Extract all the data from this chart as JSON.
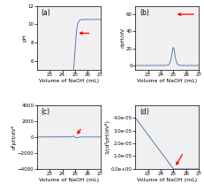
{
  "xlim": [
    22,
    27
  ],
  "xticks": [
    23,
    24,
    25,
    26,
    27
  ],
  "xlabel": "Volume of NaOH (mL)",
  "eq_point": 25.0,
  "panel_labels": [
    "(a)",
    "(b)",
    "(c)",
    "(d)"
  ],
  "line_color": "#5b7cb5",
  "arrow_color": "red",
  "background": "#f0f0f0",
  "tick_fontsize": 4,
  "label_fontsize": 4.5,
  "panel_label_fontsize": 5.5,
  "ph_ylim": [
    5.0,
    12.0
  ],
  "ph_yticks": [
    6,
    8,
    10,
    12
  ],
  "dpH_ylim": [
    -5,
    70
  ],
  "dpH_yticks": [
    0,
    20,
    40,
    60
  ],
  "d2pH_ylim": [
    -4000,
    4000
  ],
  "d2pH_yticks": [
    -4000,
    -2000,
    0,
    2000,
    4000
  ],
  "d_ylim": [
    0,
    5e-05
  ],
  "d_yticks": [
    0,
    1e-05,
    2e-05,
    3e-05,
    4e-05
  ],
  "d_yticklabels": [
    "0.0e+00",
    "1.0e-05",
    "2.0e-05",
    "3.0e-05",
    "4.0e-05"
  ],
  "steepness": 12
}
